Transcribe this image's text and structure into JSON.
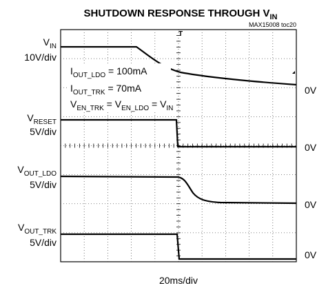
{
  "chart_data": {
    "type": "oscilloscope",
    "title": {
      "main": "SHUTDOWN RESPONSE THROUGH V",
      "sub": "IN"
    },
    "note": "MAX15008 toc20",
    "channels": [
      {
        "name": {
          "main": "V",
          "sub": "IN"
        },
        "scale": "10V/div",
        "zero": "0V"
      },
      {
        "name": {
          "main": "V",
          "sub": "RESET"
        },
        "scale": "5V/div",
        "zero": "0V"
      },
      {
        "name": {
          "main": "V",
          "sub": "OUT_LDO"
        },
        "scale": "5V/div",
        "zero": "0V"
      },
      {
        "name": {
          "main": "V",
          "sub": "OUT_TRK"
        },
        "scale": "5V/div",
        "zero": "0V"
      }
    ],
    "annotations": [
      [
        {
          "main": "I",
          "sub": "OUT_LDO"
        },
        {
          "main": " = 100mA"
        }
      ],
      [
        {
          "main": "I",
          "sub": "OUT_TRK"
        },
        {
          "main": " = 70mA"
        }
      ],
      [
        {
          "main": "V",
          "sub": "EN_TRK"
        },
        {
          "main": " = V",
          "sub": "EN_LDO"
        },
        {
          "main": " = V",
          "sub": "IN"
        }
      ]
    ],
    "xlabel": "20ms/div"
  }
}
